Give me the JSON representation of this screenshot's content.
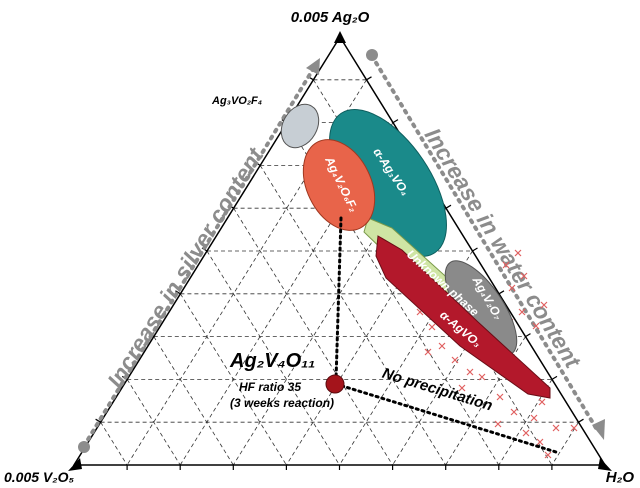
{
  "vertices": {
    "top": "0.005 Ag₂O",
    "left": "0.005 V₂O₅",
    "right": "H₂O"
  },
  "arrows": {
    "silver": "Increase in silver content",
    "water": "Increase in water content"
  },
  "phases": {
    "ag3vo2f4": "Ag₃VO₂F₄",
    "alpha_ag3vo4": "α-Ag₃VO₄",
    "ag4v2o6f2": "Ag₄V₂O₆F₂",
    "unknown": "Unknown phase",
    "ag4v2o7": "Ag₄V₂O₇",
    "alpha_agvo3": "α-AgVO₃"
  },
  "annotations": {
    "compound": "Ag₂V₄O₁₁",
    "hf_ratio": "HF ratio 35",
    "reaction": "(3 weeks reaction)",
    "no_precip": "No precipitation"
  },
  "colors": {
    "grid": "#333333",
    "arrow": "#8c8c8c",
    "ag3vo2f4": "#c7ced4",
    "alpha_ag3vo4": "#1a8a8a",
    "ag4v2o6f2": "#e8644a",
    "unknown": "#cfe5a4",
    "ag4v2o7": "#8a8a8a",
    "alpha_agvo3": "#b3182b",
    "marker": "#a4141b",
    "cross": "#e06060"
  }
}
